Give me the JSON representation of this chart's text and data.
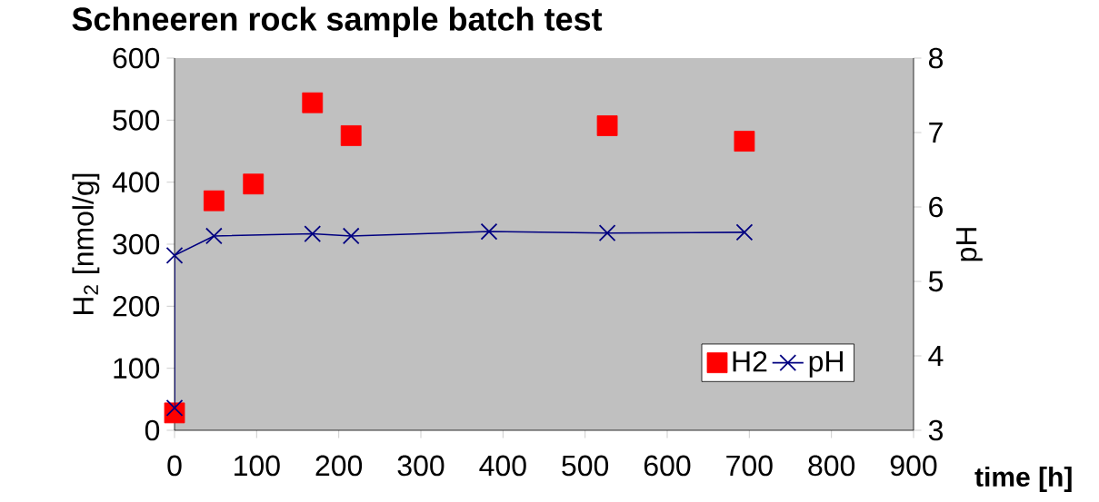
{
  "chart_data": {
    "type": "scatter",
    "title": "Schneeren rock sample batch test",
    "xlabel": "time [h]",
    "ylabel": "H$_{2}$ [nmol/g]",
    "y2label": "pH",
    "xlim": [
      0,
      900
    ],
    "xticks": [
      0,
      100,
      200,
      300,
      400,
      500,
      600,
      700,
      800,
      900
    ],
    "ylim": [
      0,
      600
    ],
    "yticks": [
      0,
      100,
      200,
      300,
      400,
      500,
      600
    ],
    "y2lim": [
      3,
      8
    ],
    "y2ticks": [
      3,
      4,
      5,
      6,
      7,
      8
    ],
    "grid": false,
    "legend": "bottom right",
    "series": [
      {
        "name": "H2",
        "marker": "square",
        "color": "#ff0000",
        "x": [
          0,
          48,
          96,
          168,
          215,
          527,
          694
        ],
        "values": [
          28,
          370,
          397,
          528,
          475,
          491,
          466
        ]
      },
      {
        "name": "pH",
        "type": "line",
        "marker": "cross",
        "axis": "y2",
        "color": "#000080",
        "x": [
          0,
          0,
          48,
          168,
          215,
          383,
          527,
          694
        ],
        "values": [
          3.3,
          5.35,
          5.61,
          5.64,
          5.61,
          5.67,
          5.65,
          5.66
        ]
      }
    ]
  }
}
